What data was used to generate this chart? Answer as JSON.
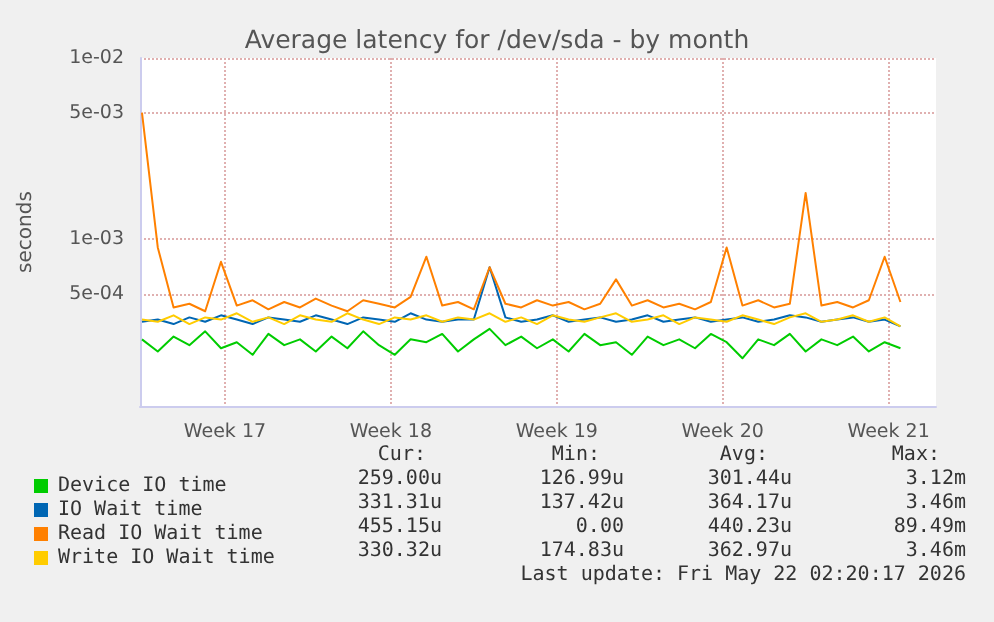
{
  "chart_data": {
    "type": "line",
    "title": "Average latency for /dev/sda - by month",
    "ylabel": "seconds",
    "log": true,
    "grid": true,
    "legend": "bottom",
    "marker": "none",
    "line_style": "solid",
    "ylim": [
      0.00012,
      0.01
    ],
    "yticks": [
      {
        "value": 0.01,
        "label": "1e-02"
      },
      {
        "value": 0.005,
        "label": "5e-03"
      },
      {
        "value": 0.001,
        "label": "1e-03"
      },
      {
        "value": 0.0005,
        "label": "5e-04"
      }
    ],
    "xlim": [
      "2026-04-19T22:00",
      "2026-05-23T12:00"
    ],
    "xticks": [
      {
        "value": "2026-04-23T12:00",
        "label": "Week 17"
      },
      {
        "value": "2026-04-30T12:00",
        "label": "Week 18"
      },
      {
        "value": "2026-05-07T12:00",
        "label": "Week 19"
      },
      {
        "value": "2026-05-14T12:00",
        "label": "Week 20"
      },
      {
        "value": "2026-05-21T12:00",
        "label": "Week 21"
      }
    ],
    "x": [
      "2026-04-20T00:00",
      "2026-04-20T16:00",
      "2026-04-21T08:00",
      "2026-04-22T00:00",
      "2026-04-22T16:00",
      "2026-04-23T08:00",
      "2026-04-24T00:00",
      "2026-04-24T16:00",
      "2026-04-25T08:00",
      "2026-04-26T00:00",
      "2026-04-26T16:00",
      "2026-04-27T08:00",
      "2026-04-28T00:00",
      "2026-04-28T16:00",
      "2026-04-29T08:00",
      "2026-04-30T00:00",
      "2026-04-30T16:00",
      "2026-05-01T08:00",
      "2026-05-02T00:00",
      "2026-05-02T16:00",
      "2026-05-03T08:00",
      "2026-05-04T00:00",
      "2026-05-04T16:00",
      "2026-05-05T08:00",
      "2026-05-06T00:00",
      "2026-05-06T16:00",
      "2026-05-07T08:00",
      "2026-05-08T00:00",
      "2026-05-08T16:00",
      "2026-05-09T08:00",
      "2026-05-10T00:00",
      "2026-05-10T16:00",
      "2026-05-11T08:00",
      "2026-05-12T00:00",
      "2026-05-12T16:00",
      "2026-05-13T08:00",
      "2026-05-14T00:00",
      "2026-05-14T16:00",
      "2026-05-15T08:00",
      "2026-05-16T00:00",
      "2026-05-16T16:00",
      "2026-05-17T08:00",
      "2026-05-18T00:00",
      "2026-05-18T16:00",
      "2026-05-19T08:00",
      "2026-05-20T00:00",
      "2026-05-20T16:00",
      "2026-05-21T08:00",
      "2026-05-22T00:00"
    ],
    "series": [
      {
        "name": "Device IO time",
        "color": "#00cc00",
        "values": [
          0.00028,
          0.00024,
          0.00029,
          0.00026,
          0.00031,
          0.00025,
          0.00027,
          0.00023,
          0.0003,
          0.00026,
          0.00028,
          0.00024,
          0.00029,
          0.00025,
          0.00031,
          0.00026,
          0.00023,
          0.00028,
          0.00027,
          0.0003,
          0.00024,
          0.00028,
          0.00032,
          0.00026,
          0.00029,
          0.00025,
          0.00028,
          0.00024,
          0.0003,
          0.00026,
          0.00027,
          0.00023,
          0.00029,
          0.00026,
          0.00028,
          0.00025,
          0.0003,
          0.00027,
          0.00022,
          0.00028,
          0.00026,
          0.0003,
          0.00024,
          0.00028,
          0.00026,
          0.00029,
          0.00024,
          0.00027,
          0.00025
        ]
      },
      {
        "name": "IO Wait time",
        "color": "#0066b3",
        "values": [
          0.00035,
          0.00036,
          0.00034,
          0.00037,
          0.00035,
          0.00038,
          0.00036,
          0.00034,
          0.00037,
          0.00036,
          0.00035,
          0.00038,
          0.00036,
          0.00034,
          0.00037,
          0.00036,
          0.00035,
          0.00039,
          0.00036,
          0.00035,
          0.00036,
          0.00036,
          0.0007,
          0.00037,
          0.00035,
          0.00036,
          0.00038,
          0.00035,
          0.00036,
          0.00037,
          0.00035,
          0.00036,
          0.00038,
          0.00035,
          0.00036,
          0.00037,
          0.00035,
          0.00036,
          0.00037,
          0.00035,
          0.00036,
          0.00038,
          0.00037,
          0.00035,
          0.00036,
          0.00037,
          0.00035,
          0.00036,
          0.00033
        ]
      },
      {
        "name": "Read IO Wait time",
        "color": "#ff8000",
        "values": [
          0.005,
          0.0009,
          0.00042,
          0.00044,
          0.0004,
          0.00075,
          0.00043,
          0.00046,
          0.00041,
          0.00045,
          0.00042,
          0.00047,
          0.00043,
          0.0004,
          0.00046,
          0.00044,
          0.00042,
          0.00048,
          0.0008,
          0.00043,
          0.00045,
          0.00041,
          0.0007,
          0.00044,
          0.00042,
          0.00046,
          0.00043,
          0.00045,
          0.00041,
          0.00044,
          0.0006,
          0.00043,
          0.00046,
          0.00042,
          0.00044,
          0.00041,
          0.00045,
          0.0009,
          0.00043,
          0.00046,
          0.00042,
          0.00044,
          0.0018,
          0.00043,
          0.00045,
          0.00042,
          0.00046,
          0.0008,
          0.00045
        ]
      },
      {
        "name": "Write IO Wait time",
        "color": "#ffcc00",
        "values": [
          0.00036,
          0.00035,
          0.00038,
          0.00034,
          0.00037,
          0.00036,
          0.00039,
          0.00035,
          0.00037,
          0.00034,
          0.00038,
          0.00036,
          0.00035,
          0.00039,
          0.00036,
          0.00034,
          0.00037,
          0.00036,
          0.00038,
          0.00035,
          0.00037,
          0.00036,
          0.00039,
          0.00035,
          0.00037,
          0.00034,
          0.00038,
          0.00036,
          0.00035,
          0.00037,
          0.00039,
          0.00035,
          0.00036,
          0.00038,
          0.00034,
          0.00037,
          0.00036,
          0.00035,
          0.00038,
          0.00036,
          0.00034,
          0.00037,
          0.00039,
          0.00035,
          0.00036,
          0.00038,
          0.00035,
          0.00037,
          0.00033
        ]
      }
    ],
    "annotations": [
      "Cur:",
      "Min:",
      "Avg:",
      "Max:",
      "259.00u",
      "126.99u",
      "301.44u",
      "3.12m",
      "331.31u",
      "137.42u",
      "364.17u",
      "3.46m",
      "455.15u",
      "0.00",
      "440.23u",
      "89.49m",
      "330.32u",
      "174.83u",
      "362.97u",
      "3.46m",
      "Last update: Fri May 22 02:20:17 2026"
    ]
  }
}
